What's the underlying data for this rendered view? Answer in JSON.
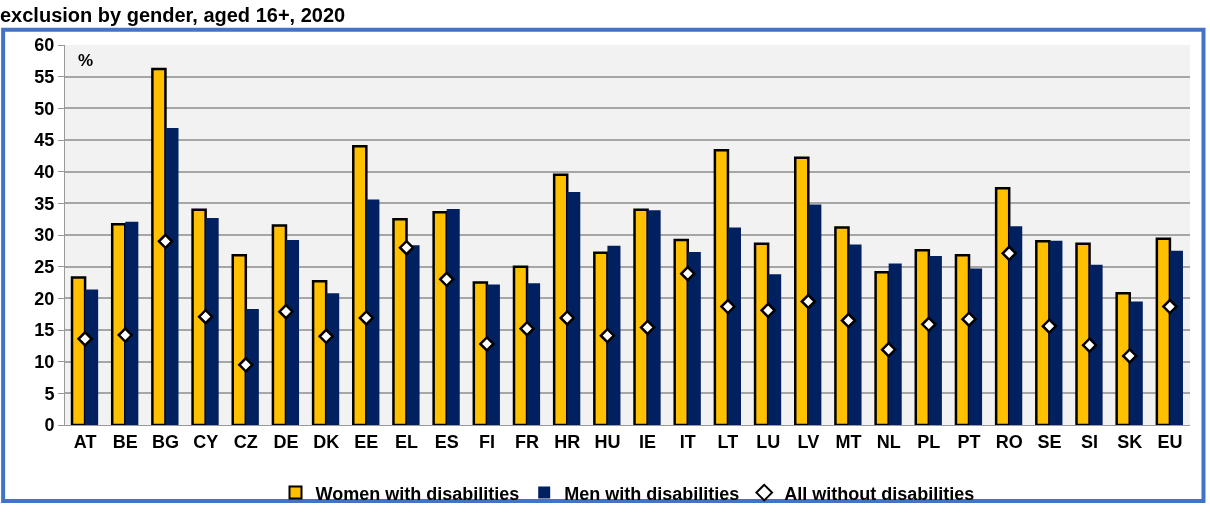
{
  "chart_data": {
    "type": "bar",
    "title": "exclusion by gender, aged 16+, 2020",
    "categories": [
      "AT",
      "BE",
      "BG",
      "CY",
      "CZ",
      "DE",
      "DK",
      "EE",
      "EL",
      "ES",
      "FI",
      "FR",
      "HR",
      "HU",
      "IE",
      "IT",
      "LT",
      "LU",
      "LV",
      "MT",
      "NL",
      "PL",
      "PT",
      "RO",
      "SE",
      "SI",
      "SK",
      "EU"
    ],
    "series": [
      {
        "name": "Women with disabilities",
        "color": "#ffc000",
        "values": [
          23.3,
          31.7,
          56.2,
          34,
          26.8,
          31.5,
          22.7,
          44,
          32.5,
          33.6,
          22.5,
          25,
          39.5,
          27.2,
          34,
          29.2,
          43.4,
          28.6,
          42.2,
          31.2,
          24.1,
          27.6,
          26.8,
          37.4,
          29,
          28.6,
          20.8,
          29.4
        ]
      },
      {
        "name": "Men with disabilities",
        "color": "#002060",
        "values": [
          21.4,
          32.1,
          46.9,
          32.7,
          18.3,
          29.2,
          20.8,
          35.6,
          28.4,
          34.1,
          22.2,
          22.4,
          36.8,
          28.3,
          33.9,
          27.3,
          31.2,
          23.8,
          34.8,
          28.5,
          25.5,
          26.7,
          24.7,
          31.4,
          29.1,
          25.3,
          19.5,
          27.5
        ]
      },
      {
        "name": "All without disabilities",
        "type": "scatter",
        "marker": "diamond",
        "color": "#ffffff",
        "values": [
          13.6,
          14.2,
          29,
          17.1,
          9.5,
          17.9,
          14,
          16.9,
          28,
          23,
          12.8,
          15.2,
          16.9,
          14.1,
          15.4,
          23.9,
          18.7,
          18.1,
          19.5,
          16.5,
          11.9,
          15.9,
          16.7,
          27.1,
          15.6,
          12.6,
          10.9,
          18.7
        ]
      }
    ],
    "ylim": [
      0,
      60
    ],
    "yticks": [
      0,
      5,
      10,
      15,
      20,
      25,
      30,
      35,
      40,
      45,
      50,
      55,
      60
    ],
    "annotations": [
      "%"
    ],
    "grid": "y",
    "legend": "bottom"
  }
}
